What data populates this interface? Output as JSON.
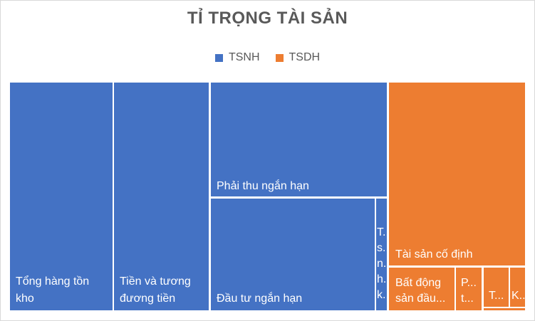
{
  "chart_data": {
    "type": "treemap",
    "title": "TỈ TRỌNG TÀI SẢN",
    "legend_position": "top",
    "series": [
      {
        "name": "TSNH",
        "color": "#4472C4"
      },
      {
        "name": "TSDH",
        "color": "#ED7D31"
      }
    ],
    "items": [
      {
        "group": "TSNH",
        "display": [
          "Tổng hàng tồn",
          "kho"
        ],
        "value": 21.5
      },
      {
        "group": "TSNH",
        "display": [
          "Tiền và tương",
          "đương tiền"
        ],
        "value": 19.8
      },
      {
        "group": "TSNH",
        "display": [
          "Phải thu ngắn hạn"
        ],
        "value": 17.4
      },
      {
        "group": "TSNH",
        "display": [
          "Đầu tư ngắn hạn"
        ],
        "value": 16.1
      },
      {
        "group": "TSNH",
        "display": [
          "T...",
          "s...",
          "n...",
          "h...",
          "k..."
        ],
        "value": 1.2
      },
      {
        "group": "TSDH",
        "display": [
          "Tài sản cố định"
        ],
        "value": 17.0
      },
      {
        "group": "TSDH",
        "display": [
          "Bất động",
          "sản đầu..."
        ],
        "value": 4.5
      },
      {
        "group": "TSDH",
        "display": [
          "P...",
          "t..."
        ],
        "value": 1.6
      },
      {
        "group": "TSDH",
        "display": [
          "T..."
        ],
        "value": 1.3
      },
      {
        "group": "TSDH",
        "display": [
          "K..."
        ],
        "value": 0.9
      },
      {
        "group": "TSDH",
        "display": [],
        "value": 0.1
      }
    ]
  }
}
